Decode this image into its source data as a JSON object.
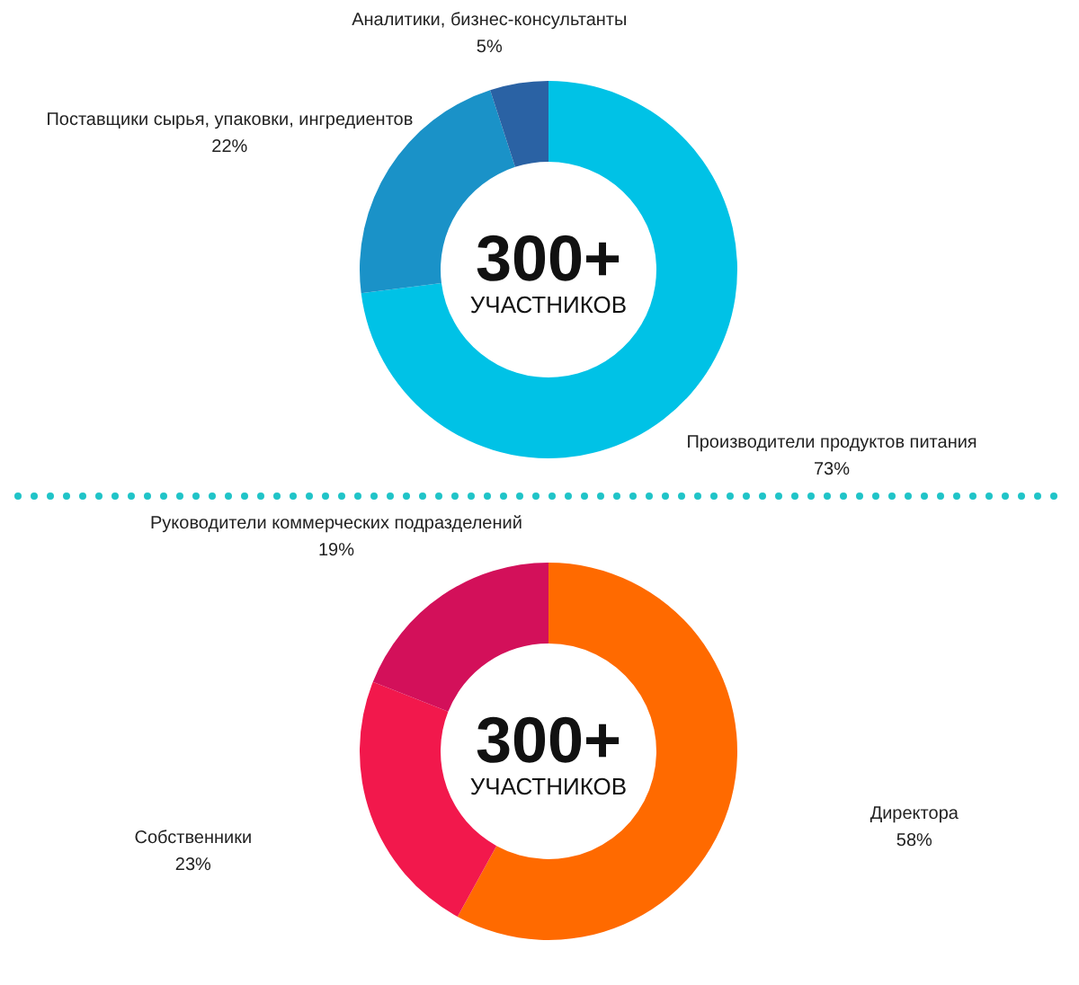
{
  "chart_data": [
    {
      "type": "donut",
      "categories": [
        "Производители продуктов питания",
        "Поставщики сырья, упаковки, ингредиентов",
        "Аналитики, бизнес-консультанты"
      ],
      "values": [
        73,
        22,
        5
      ],
      "colors": [
        "#00c2e6",
        "#1a92c8",
        "#2a62a4"
      ],
      "value_labels": [
        "73%",
        "22%",
        "5%"
      ],
      "annotations": [
        "300+",
        "УЧАСТНИКОВ"
      ]
    },
    {
      "type": "donut",
      "categories": [
        "Директора",
        "Собственники",
        "Руководители коммерческих подразделений"
      ],
      "values": [
        58,
        23,
        19
      ],
      "colors": [
        "#ff6a00",
        "#f2184c",
        "#d3105a"
      ],
      "value_labels": [
        "58%",
        "23%",
        "19%"
      ],
      "annotations": [
        "300+",
        "УЧАСТНИКОВ"
      ]
    }
  ]
}
